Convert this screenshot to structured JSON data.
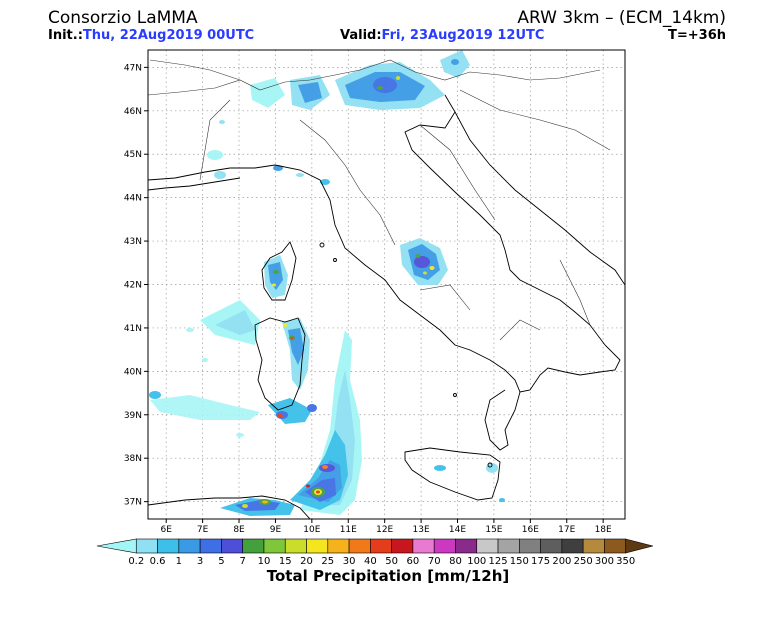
{
  "header": {
    "org": "Consorzio LaMMA",
    "model": "ARW 3km – (ECM_14km)",
    "init_label": "Init.:",
    "init_value": "Thu, 22Aug2019 00UTC",
    "valid_label": "Valid:",
    "valid_value": "Fri, 23Aug2019 12UTC",
    "lead": "T=+36h"
  },
  "map": {
    "lat_labels": [
      "47N",
      "46N",
      "45N",
      "44N",
      "43N",
      "42N",
      "41N",
      "40N",
      "39N",
      "38N",
      "37N"
    ],
    "lon_labels": [
      "6E",
      "7E",
      "8E",
      "9E",
      "10E",
      "11E",
      "12E",
      "13E",
      "14E",
      "15E",
      "16E",
      "17E",
      "18E"
    ],
    "lat_range": [
      36.6,
      47.4
    ],
    "lon_range": [
      5.5,
      18.6
    ]
  },
  "colorbar": {
    "title": "Total Precipitation [mm/12h]",
    "labels": [
      "0.2",
      "0.6",
      "1",
      "3",
      "5",
      "7",
      "10",
      "15",
      "20",
      "25",
      "30",
      "40",
      "50",
      "60",
      "70",
      "80",
      "100",
      "125",
      "150",
      "175",
      "200",
      "250",
      "300",
      "350"
    ],
    "colors": [
      "#a4f5f5",
      "#8ee0f2",
      "#3cbfe8",
      "#3a9ae6",
      "#3f6fe4",
      "#4e4fd8",
      "#43a13d",
      "#7ec63a",
      "#c9dd2a",
      "#f3e61e",
      "#f5b21b",
      "#f0791a",
      "#e43d1b",
      "#c8161e",
      "#e87bd1",
      "#cc39c0",
      "#8a2a8a",
      "#c8c8c8",
      "#a4a4a4",
      "#808080",
      "#5e5e5e",
      "#3f3f3f",
      "#b58a3c",
      "#8c5a1e",
      "#5e3a12"
    ]
  }
}
